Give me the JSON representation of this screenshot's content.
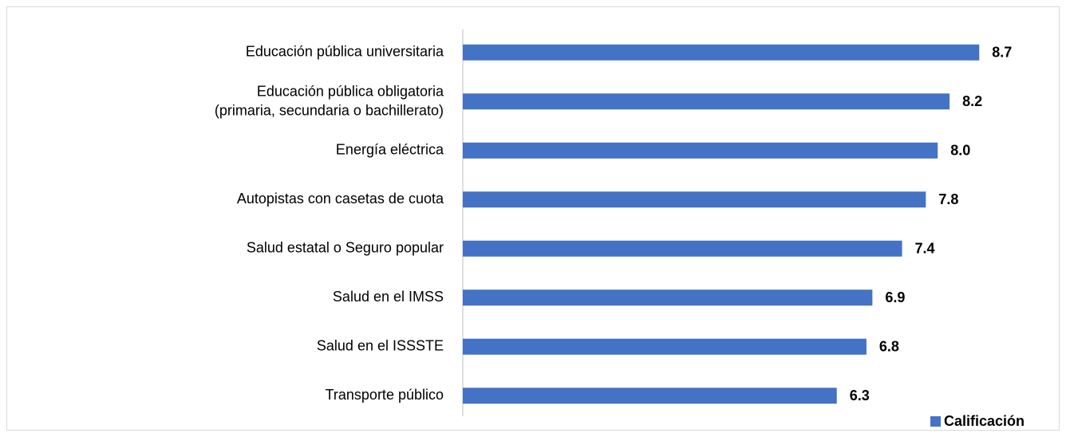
{
  "chart_data": {
    "type": "barh",
    "categories": [
      "Educación pública universitaria",
      "Educación pública obligatoria\n(primaria, secundaria o bachillerato)",
      "Energía eléctrica",
      "Autopistas con casetas de cuota",
      "Salud estatal o Seguro popular",
      "Salud en el IMSS",
      "Salud en el ISSSTE",
      "Transporte público"
    ],
    "series": [
      {
        "name": "Calificación",
        "color": "#4472c4",
        "values": [
          8.7,
          8.2,
          8.0,
          7.8,
          7.4,
          6.9,
          6.8,
          6.3
        ],
        "value_labels": [
          "8.7",
          "8.2",
          "8.0",
          "7.8",
          "7.4",
          "6.9",
          "6.8",
          "6.3"
        ]
      }
    ],
    "xlim": [
      0,
      10
    ],
    "legend": "bottom-right"
  }
}
